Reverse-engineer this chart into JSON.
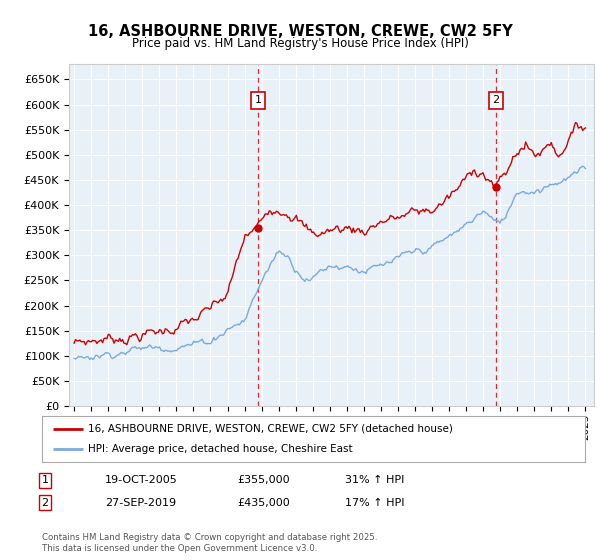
{
  "title": "16, ASHBOURNE DRIVE, WESTON, CREWE, CW2 5FY",
  "subtitle": "Price paid vs. HM Land Registry's House Price Index (HPI)",
  "fig_bg_color": "#ffffff",
  "plot_bg_color": "#e8f0f8",
  "red_line_color": "#cc0000",
  "blue_line_color": "#7aaadd",
  "grid_color": "#ffffff",
  "ylim": [
    0,
    680000
  ],
  "yticks": [
    0,
    50000,
    100000,
    150000,
    200000,
    250000,
    300000,
    350000,
    400000,
    450000,
    500000,
    550000,
    600000,
    650000
  ],
  "ytick_labels": [
    "£0",
    "£50K",
    "£100K",
    "£150K",
    "£200K",
    "£250K",
    "£300K",
    "£350K",
    "£400K",
    "£450K",
    "£500K",
    "£550K",
    "£600K",
    "£650K"
  ],
  "xlim_start": 1994.7,
  "xlim_end": 2025.5,
  "marker1_x": 2005.8,
  "marker1_y": 355000,
  "marker1_date": "19-OCT-2005",
  "marker1_price": "£355,000",
  "marker1_hpi": "31% ↑ HPI",
  "marker2_x": 2019.73,
  "marker2_y": 435000,
  "marker2_date": "27-SEP-2019",
  "marker2_price": "£435,000",
  "marker2_hpi": "17% ↑ HPI",
  "legend_line1": "16, ASHBOURNE DRIVE, WESTON, CREWE, CW2 5FY (detached house)",
  "legend_line2": "HPI: Average price, detached house, Cheshire East",
  "footer": "Contains HM Land Registry data © Crown copyright and database right 2025.\nThis data is licensed under the Open Government Licence v3.0.",
  "xtick_years": [
    1995,
    1996,
    1997,
    1998,
    1999,
    2000,
    2001,
    2002,
    2003,
    2004,
    2005,
    2006,
    2007,
    2008,
    2009,
    2010,
    2011,
    2012,
    2013,
    2014,
    2015,
    2016,
    2017,
    2018,
    2019,
    2020,
    2021,
    2022,
    2023,
    2024,
    2025
  ],
  "red_anchors_x": [
    1995,
    1996,
    1997,
    1998,
    1999,
    2000,
    2001,
    2002,
    2003,
    2004,
    2005,
    2005.8,
    2006.5,
    2007.5,
    2008,
    2008.5,
    2009,
    2009.5,
    2010,
    2011,
    2012,
    2013,
    2014,
    2015,
    2016,
    2017,
    2017.5,
    2018,
    2018.5,
    2019,
    2019.73,
    2020,
    2020.5,
    2021,
    2021.5,
    2022,
    2022.5,
    2023,
    2023.5,
    2024,
    2024.5,
    2025
  ],
  "red_anchors_y": [
    125000,
    130000,
    135000,
    138000,
    142000,
    148000,
    158000,
    170000,
    190000,
    220000,
    335000,
    355000,
    400000,
    395000,
    380000,
    355000,
    340000,
    345000,
    350000,
    355000,
    350000,
    370000,
    375000,
    385000,
    390000,
    415000,
    430000,
    450000,
    475000,
    470000,
    435000,
    445000,
    470000,
    510000,
    520000,
    500000,
    510000,
    530000,
    500000,
    540000,
    550000,
    560000
  ],
  "blue_anchors_x": [
    1995,
    1996,
    1997,
    1998,
    1999,
    2000,
    2001,
    2002,
    2003,
    2004,
    2005,
    2006,
    2007,
    2007.5,
    2008,
    2008.5,
    2009,
    2009.5,
    2010,
    2011,
    2012,
    2013,
    2014,
    2015,
    2016,
    2017,
    2018,
    2019,
    2019.73,
    2020,
    2020.5,
    2021,
    2022,
    2023,
    2024,
    2025
  ],
  "blue_anchors_y": [
    95000,
    100000,
    105000,
    110000,
    115000,
    118000,
    120000,
    123000,
    130000,
    155000,
    170000,
    250000,
    310000,
    300000,
    275000,
    260000,
    255000,
    270000,
    280000,
    280000,
    270000,
    275000,
    290000,
    305000,
    315000,
    335000,
    360000,
    390000,
    365000,
    360000,
    390000,
    430000,
    430000,
    445000,
    455000,
    470000
  ]
}
